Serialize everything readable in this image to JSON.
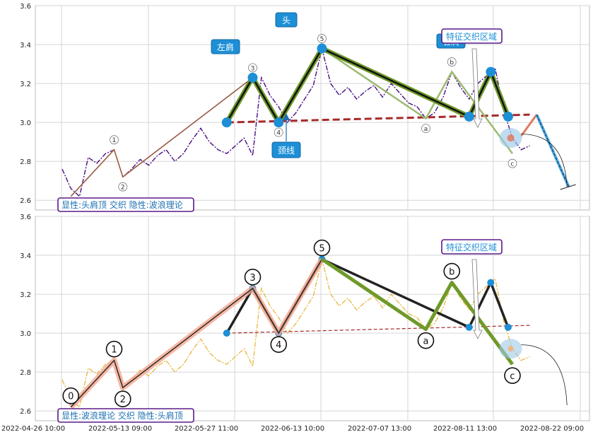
{
  "chart_data": {
    "type": "line",
    "x_ticks": [
      "2022-04-26 10:00",
      "2022-05-13 09:00",
      "2022-05-27 11:00",
      "2022-06-13 10:00",
      "2022-07-07 13:00",
      "2022-08-11 13:00",
      "2022-08-22 09:00"
    ],
    "y_ticks": [
      "2.6",
      "2.8",
      "3.0",
      "3.2",
      "3.4",
      "3.6"
    ],
    "ylim": [
      2.55,
      3.6
    ],
    "panels": [
      {
        "caption": "显性:头肩顶 交织 隐性:波浪理论",
        "line_color": "#4b0f82",
        "shoulder_labels": {
          "left": "左肩",
          "head": "头",
          "right": "右肩",
          "neck": "颈线"
        },
        "zone_label": "特征交织区域",
        "wave_labels": [
          "0",
          "1",
          "2",
          "3",
          "4",
          "5",
          "a",
          "b",
          "c"
        ]
      },
      {
        "caption": "显性:波浪理论 交织 隐性:头肩顶",
        "line_color": "#e8b030",
        "zone_label": "特征交织区域",
        "wave_labels": [
          "0",
          "1",
          "2",
          "3",
          "4",
          "5",
          "a",
          "b",
          "c"
        ]
      }
    ],
    "wave_points": [
      {
        "label": "0",
        "x": 1,
        "y": 2.62
      },
      {
        "label": "1",
        "x": 6,
        "y": 2.86
      },
      {
        "label": "2",
        "x": 7,
        "y": 2.72
      },
      {
        "label": "3",
        "x": 22,
        "y": 3.23
      },
      {
        "label": "4",
        "x": 25,
        "y": 3.0
      },
      {
        "label": "5",
        "x": 30,
        "y": 3.38
      },
      {
        "label": "a",
        "x": 42,
        "y": 3.02
      },
      {
        "label": "b",
        "x": 45,
        "y": 3.26
      },
      {
        "label": "c",
        "x": 52,
        "y": 2.84
      }
    ],
    "shoulder_points": [
      {
        "x": 19,
        "y": 3.0
      },
      {
        "x": 22,
        "y": 3.23
      },
      {
        "x": 25,
        "y": 3.0
      },
      {
        "x": 30,
        "y": 3.38
      },
      {
        "x": 47,
        "y": 3.03
      },
      {
        "x": 49.5,
        "y": 3.26
      },
      {
        "x": 51.5,
        "y": 3.03
      }
    ],
    "neckline": {
      "x": [
        19,
        54
      ],
      "y": [
        3.0,
        3.04
      ]
    },
    "projection_top": [
      {
        "x": 53,
        "y": 2.93
      },
      {
        "x": 54.8,
        "y": 3.04
      },
      {
        "x": 58.5,
        "y": 2.67
      }
    ],
    "price_series": [
      2.76,
      2.66,
      2.62,
      2.82,
      2.79,
      2.84,
      2.86,
      2.72,
      2.76,
      2.81,
      2.78,
      2.83,
      2.86,
      2.8,
      2.84,
      2.91,
      2.97,
      2.9,
      2.86,
      2.84,
      2.88,
      2.92,
      2.83,
      3.23,
      3.14,
      3.08,
      3.0,
      3.05,
      3.12,
      3.19,
      3.38,
      3.2,
      3.14,
      3.18,
      3.12,
      3.16,
      3.19,
      3.13,
      3.2,
      3.15,
      3.1,
      3.08,
      3.02,
      3.05,
      3.13,
      3.26,
      3.18,
      3.12,
      3.2,
      3.24,
      3.28,
      3.06,
      2.92,
      2.86,
      2.88
    ]
  }
}
